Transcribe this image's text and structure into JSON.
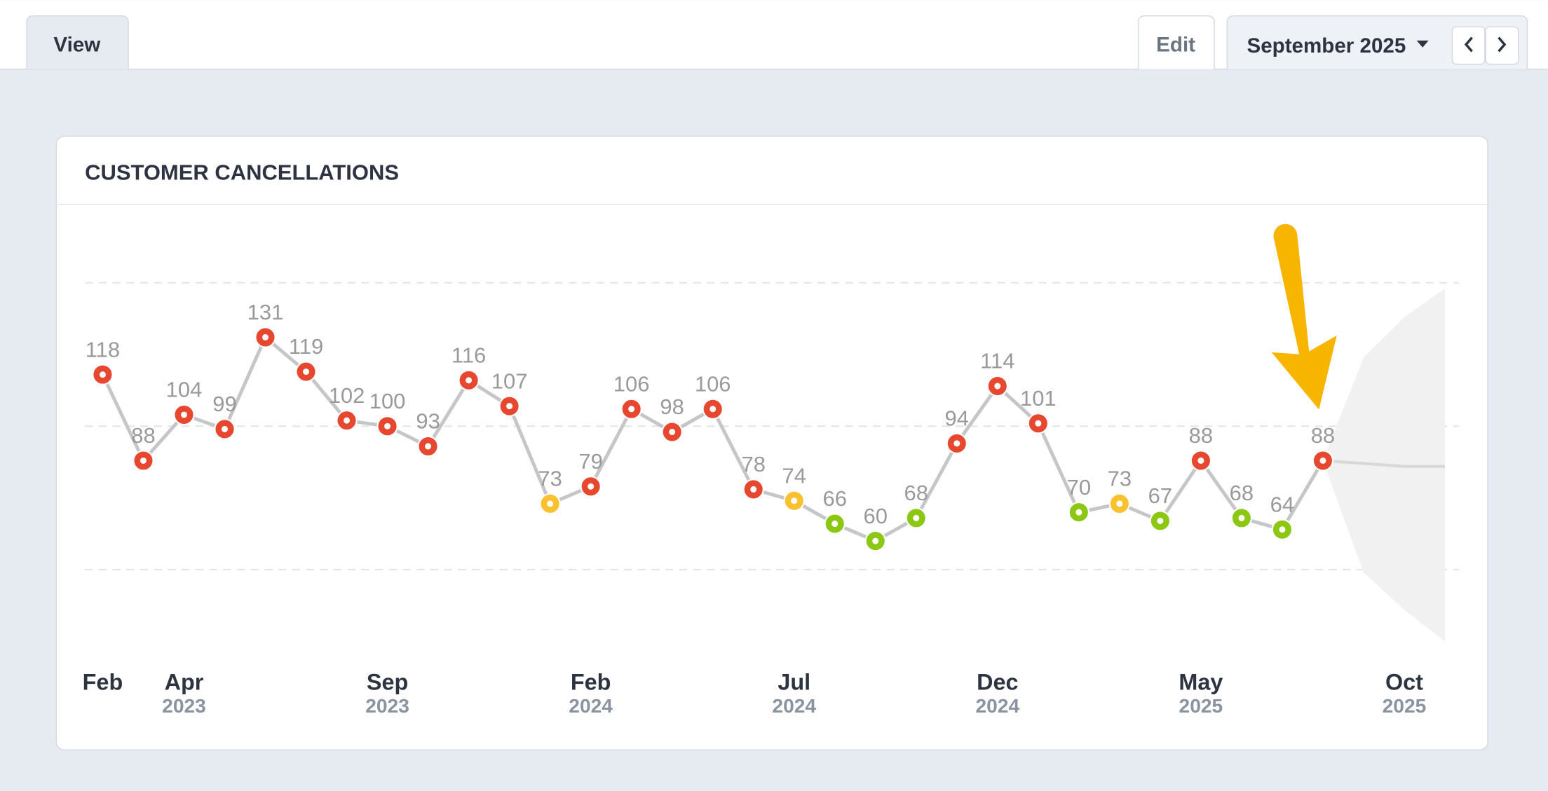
{
  "ui": {
    "tab_view": "View",
    "tab_edit": "Edit",
    "period": "September 2025"
  },
  "chart_data": {
    "type": "line",
    "title": "CUSTOMER CANCELLATIONS",
    "categories": [
      "Feb",
      null,
      "Apr",
      null,
      null,
      null,
      null,
      "Sep",
      null,
      null,
      null,
      null,
      "Feb",
      null,
      null,
      null,
      null,
      "Jul",
      null,
      null,
      null,
      null,
      "Dec",
      null,
      null,
      null,
      null,
      "May",
      null,
      null,
      null,
      null,
      "Oct",
      null
    ],
    "category_years": [
      null,
      null,
      "2023",
      null,
      null,
      null,
      null,
      "2023",
      null,
      null,
      null,
      null,
      "2024",
      null,
      null,
      null,
      null,
      "2024",
      null,
      null,
      null,
      null,
      "2024",
      null,
      null,
      null,
      null,
      "2025",
      null,
      null,
      null,
      null,
      "2025",
      null
    ],
    "values": [
      118,
      88,
      104,
      99,
      131,
      119,
      102,
      100,
      93,
      116,
      107,
      73,
      79,
      106,
      98,
      106,
      78,
      74,
      66,
      60,
      68,
      94,
      114,
      101,
      70,
      73,
      67,
      88,
      68,
      64,
      88,
      null,
      null,
      null
    ],
    "point_colors": [
      "#e8472f",
      "#e8472f",
      "#e8472f",
      "#e8472f",
      "#e8472f",
      "#e8472f",
      "#e8472f",
      "#e8472f",
      "#e8472f",
      "#e8472f",
      "#e8472f",
      "#f9c12e",
      "#e8472f",
      "#e8472f",
      "#e8472f",
      "#e8472f",
      "#e8472f",
      "#f9c12e",
      "#8cc714",
      "#8cc714",
      "#8cc714",
      "#e8472f",
      "#e8472f",
      "#e8472f",
      "#8cc714",
      "#f9c12e",
      "#8cc714",
      "#e8472f",
      "#8cc714",
      "#8cc714",
      "#e8472f",
      null,
      null,
      null
    ],
    "line_color": "#c4c6c9",
    "forecast": {
      "values": [
        null,
        null,
        null,
        null,
        null,
        null,
        null,
        null,
        null,
        null,
        null,
        null,
        null,
        null,
        null,
        null,
        null,
        null,
        null,
        null,
        null,
        null,
        null,
        null,
        null,
        null,
        null,
        null,
        null,
        null,
        null,
        87,
        86,
        86
      ],
      "lower": [
        null,
        null,
        null,
        null,
        null,
        null,
        null,
        null,
        null,
        null,
        null,
        null,
        null,
        null,
        null,
        null,
        null,
        null,
        null,
        null,
        null,
        null,
        null,
        null,
        null,
        null,
        null,
        null,
        null,
        null,
        null,
        49,
        36,
        25
      ],
      "upper": [
        null,
        null,
        null,
        null,
        null,
        null,
        null,
        null,
        null,
        null,
        null,
        null,
        null,
        null,
        null,
        null,
        null,
        null,
        null,
        null,
        null,
        null,
        null,
        null,
        null,
        null,
        null,
        null,
        null,
        null,
        null,
        124,
        138,
        148
      ]
    },
    "ylim": [
      25,
      166
    ],
    "yticks": [
      50,
      100,
      150
    ],
    "grid": true
  }
}
